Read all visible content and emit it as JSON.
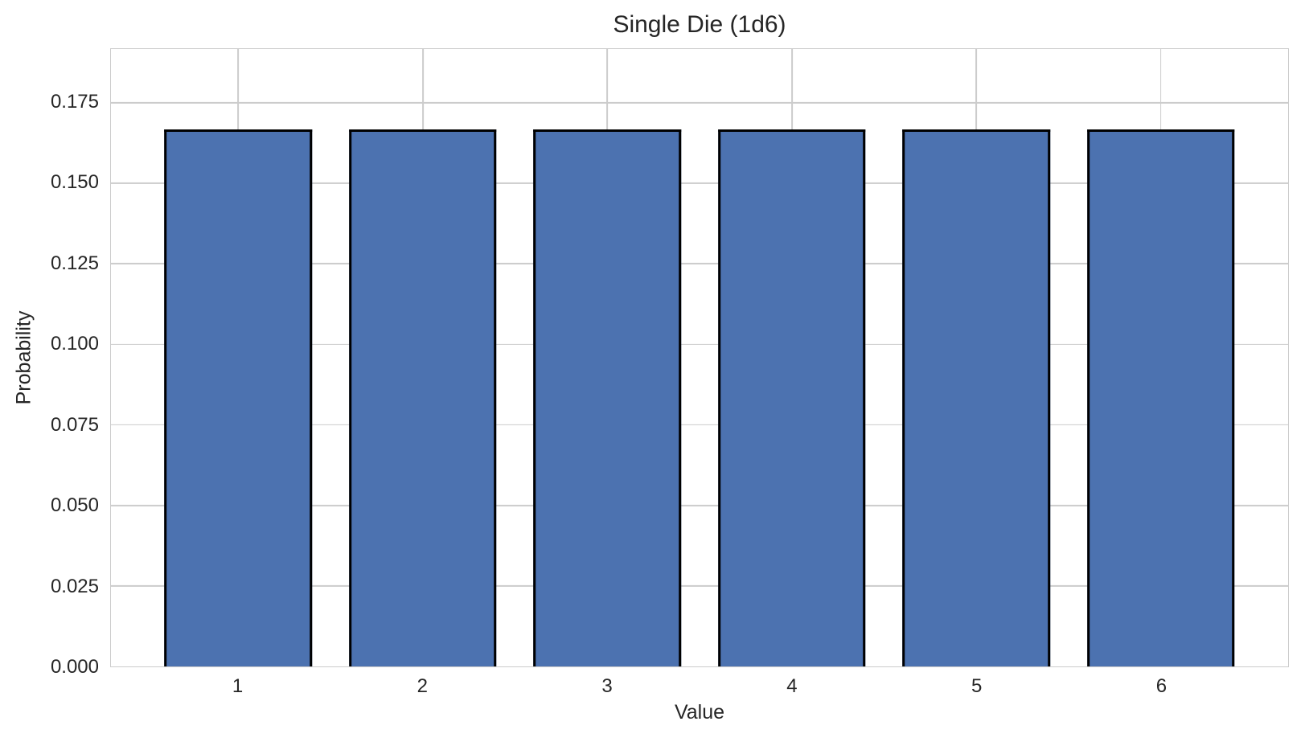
{
  "chart_data": {
    "type": "bar",
    "title": "Single Die (1d6)",
    "xlabel": "Value",
    "ylabel": "Probability",
    "categories": [
      "1",
      "2",
      "3",
      "4",
      "5",
      "6"
    ],
    "x": [
      1,
      2,
      3,
      4,
      5,
      6
    ],
    "values": [
      0.1667,
      0.1667,
      0.1667,
      0.1667,
      0.1667,
      0.1667
    ],
    "ytick_labels": [
      "0.000",
      "0.025",
      "0.050",
      "0.075",
      "0.100",
      "0.125",
      "0.150",
      "0.175"
    ],
    "ytick_values": [
      0.0,
      0.025,
      0.05,
      0.075,
      0.1,
      0.125,
      0.15,
      0.175
    ],
    "ylim": [
      0,
      0.191667
    ],
    "xlim": [
      0.31,
      6.69
    ],
    "bar_width_units": 0.8,
    "grid": true,
    "legend_position": "none",
    "colors": {
      "bar_fill": "#4C72B0",
      "bar_edge": "#000000",
      "grid": "#cccccc",
      "text": "#262626",
      "background": "#ffffff"
    }
  }
}
